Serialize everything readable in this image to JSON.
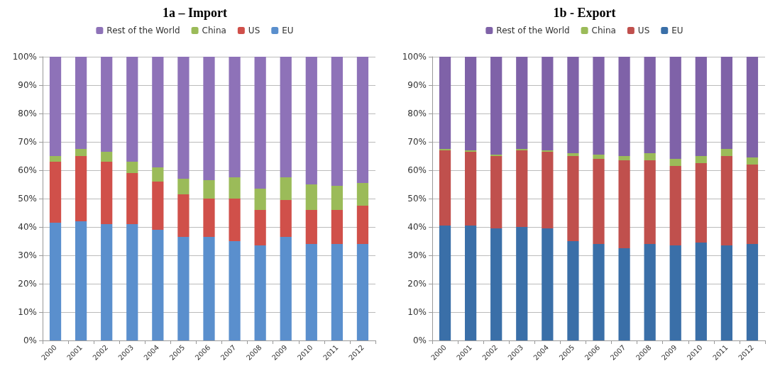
{
  "chart_data": [
    {
      "type": "bar",
      "title": "1a – Import",
      "stacked": true,
      "legend": "top",
      "grid": "y",
      "categories": [
        "2000",
        "2001",
        "2002",
        "2003",
        "2004",
        "2005",
        "2006",
        "2007",
        "2008",
        "2009",
        "2010",
        "2011",
        "2012"
      ],
      "ylim": [
        0,
        100
      ],
      "yticks": [
        {
          "value": 0,
          "label": "0%"
        },
        {
          "value": 10,
          "label": "10%"
        },
        {
          "value": 20,
          "label": "20%"
        },
        {
          "value": 30,
          "label": "30%"
        },
        {
          "value": 40,
          "label": "40%"
        },
        {
          "value": 50,
          "label": "50%"
        },
        {
          "value": 60,
          "label": "60%"
        },
        {
          "value": 70,
          "label": "70%"
        },
        {
          "value": 80,
          "label": "80%"
        },
        {
          "value": 90,
          "label": "90%"
        },
        {
          "value": 100,
          "label": "100%"
        }
      ],
      "series": [
        {
          "name": "EU",
          "color": "#5a8fcd",
          "values": [
            41.5,
            42,
            41,
            41,
            39,
            36.5,
            36.5,
            35,
            33.5,
            36.5,
            34,
            34,
            34
          ]
        },
        {
          "name": "US",
          "color": "#d0504a",
          "values": [
            21.5,
            23,
            22,
            18,
            17,
            15,
            13.5,
            15,
            12.5,
            13,
            12,
            12,
            13.5
          ]
        },
        {
          "name": "China",
          "color": "#9bbb59",
          "values": [
            2,
            2.5,
            3.5,
            4,
            5,
            5.5,
            6.5,
            7.5,
            7.5,
            8,
            9,
            8.5,
            8
          ]
        },
        {
          "name": "Rest of the World",
          "color": "#8e72b8",
          "values": [
            35,
            32.5,
            33.5,
            37,
            39,
            43,
            43.5,
            42.5,
            46.5,
            42.5,
            45,
            45.5,
            44.5
          ]
        }
      ]
    },
    {
      "type": "bar",
      "title": "1b - Export",
      "stacked": true,
      "legend": "top",
      "grid": "y",
      "categories": [
        "2000",
        "2001",
        "2002",
        "2003",
        "2004",
        "2005",
        "2006",
        "2007",
        "2008",
        "2009",
        "2010",
        "2011",
        "2012"
      ],
      "ylim": [
        0,
        100
      ],
      "yticks": [
        {
          "value": 0,
          "label": "0%"
        },
        {
          "value": 10,
          "label": "10%"
        },
        {
          "value": 20,
          "label": "20%"
        },
        {
          "value": 30,
          "label": "30%"
        },
        {
          "value": 40,
          "label": "40%"
        },
        {
          "value": 50,
          "label": "50%"
        },
        {
          "value": 60,
          "label": "60%"
        },
        {
          "value": 70,
          "label": "70%"
        },
        {
          "value": 80,
          "label": "80%"
        },
        {
          "value": 90,
          "label": "90%"
        },
        {
          "value": 100,
          "label": "100%"
        }
      ],
      "series": [
        {
          "name": "EU",
          "color": "#3a6fa8",
          "values": [
            40.5,
            40.5,
            39.5,
            40,
            39.5,
            35,
            34,
            32.5,
            34,
            33.5,
            34.5,
            33.5,
            34
          ]
        },
        {
          "name": "US",
          "color": "#c0504d",
          "values": [
            26.5,
            26,
            25.5,
            27,
            27,
            30,
            30,
            31,
            29.5,
            28,
            28,
            31.5,
            28
          ]
        },
        {
          "name": "China",
          "color": "#9bbb59",
          "values": [
            0.5,
            0.5,
            0.5,
            0.5,
            0.5,
            1,
            1.5,
            1.5,
            2.5,
            2.5,
            2.5,
            2.5,
            2.5
          ]
        },
        {
          "name": "Rest of the World",
          "color": "#7f62a8",
          "values": [
            32.5,
            33,
            34.5,
            32.5,
            33,
            34,
            34.5,
            35,
            34,
            36,
            35,
            32.5,
            35.5
          ]
        }
      ]
    }
  ]
}
